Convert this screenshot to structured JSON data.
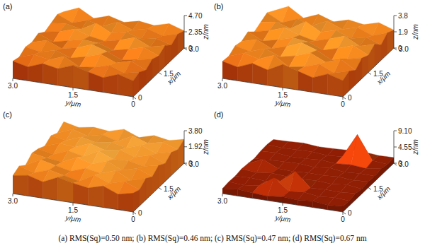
{
  "chart_data": [
    {
      "type": "surface",
      "title": "(a)",
      "x": [
        0,
        0.375,
        0.75,
        1.125,
        1.5,
        1.875,
        2.25,
        2.625,
        3
      ],
      "y": [
        0,
        0.375,
        0.75,
        1.125,
        1.5,
        1.875,
        2.25,
        2.625,
        3
      ],
      "z": [
        [
          2.3,
          2.9,
          2.1,
          2.6,
          3.2,
          2.4,
          2.8,
          2.0,
          2.5
        ],
        [
          2.7,
          2.2,
          3.0,
          2.4,
          2.1,
          3.3,
          2.5,
          2.9,
          2.2
        ],
        [
          2.1,
          3.1,
          2.5,
          3.4,
          2.7,
          2.2,
          3.0,
          2.4,
          2.8
        ],
        [
          2.8,
          2.4,
          2.0,
          2.9,
          3.6,
          2.8,
          2.3,
          3.2,
          2.6
        ],
        [
          2.4,
          3.3,
          2.7,
          2.2,
          2.9,
          3.1,
          2.6,
          2.1,
          3.0
        ],
        [
          3.0,
          2.5,
          3.5,
          2.8,
          2.3,
          2.7,
          3.4,
          2.7,
          2.3
        ],
        [
          2.2,
          2.8,
          2.4,
          3.1,
          2.6,
          3.7,
          2.5,
          3.0,
          2.7
        ],
        [
          2.9,
          2.3,
          3.0,
          2.5,
          3.3,
          2.4,
          2.9,
          2.2,
          3.1
        ],
        [
          2.5,
          3.2,
          2.6,
          2.9,
          2.4,
          3.0,
          2.3,
          3.5,
          2.6
        ]
      ],
      "xlim": [
        0,
        3
      ],
      "ylim": [
        0,
        3
      ],
      "zlim": [
        0,
        4.7
      ],
      "xticks": [
        0,
        1.5,
        {
          "value": 3,
          "label": "3.0"
        }
      ],
      "yticks": [
        0,
        1.5,
        {
          "value": 3,
          "label": "3.0"
        }
      ],
      "zticks": [
        0,
        2.35,
        {
          "value": 4.7,
          "label": "4.70"
        }
      ],
      "xlabel": "x/μm",
      "ylabel": "y/μm",
      "zlabel": "z/nm"
    },
    {
      "type": "surface",
      "title": "(b)",
      "x": [
        0,
        0.375,
        0.75,
        1.125,
        1.5,
        1.875,
        2.25,
        2.625,
        3
      ],
      "y": [
        0,
        0.375,
        0.75,
        1.125,
        1.5,
        1.875,
        2.25,
        2.625,
        3
      ],
      "z": [
        [
          1.9,
          2.4,
          1.7,
          2.2,
          2.7,
          1.8,
          2.3,
          1.6,
          2.0
        ],
        [
          2.3,
          1.8,
          2.6,
          2.0,
          1.7,
          2.8,
          2.1,
          2.5,
          1.9
        ],
        [
          1.7,
          2.7,
          2.1,
          2.9,
          2.3,
          1.9,
          2.6,
          2.0,
          2.4
        ],
        [
          2.4,
          2.0,
          1.6,
          2.5,
          3.1,
          2.4,
          1.9,
          2.7,
          2.2
        ],
        [
          2.0,
          2.9,
          2.3,
          1.8,
          2.5,
          2.7,
          2.2,
          1.8,
          2.6
        ],
        [
          2.6,
          2.1,
          3.0,
          2.4,
          1.9,
          2.3,
          2.9,
          2.3,
          1.9
        ],
        [
          1.8,
          2.4,
          2.0,
          2.7,
          2.2,
          3.2,
          2.1,
          2.6,
          2.3
        ],
        [
          2.5,
          1.9,
          2.6,
          2.1,
          2.8,
          2.0,
          2.5,
          1.8,
          2.7
        ],
        [
          2.1,
          2.7,
          2.2,
          2.5,
          2.0,
          2.6,
          1.9,
          3.0,
          2.2
        ]
      ],
      "xlim": [
        0,
        3
      ],
      "ylim": [
        0,
        3
      ],
      "zlim": [
        0,
        3.8
      ],
      "xticks": [
        0,
        1.5,
        {
          "value": 3,
          "label": "3.0"
        }
      ],
      "yticks": [
        0,
        1.5,
        {
          "value": 3,
          "label": "3.0"
        }
      ],
      "zticks": [
        0,
        1.9,
        3.8
      ],
      "xlabel": "x/μm",
      "ylabel": "y/μm",
      "zlabel": "z/nm"
    },
    {
      "type": "surface",
      "title": "(c)",
      "x": [
        0,
        0.375,
        0.75,
        1.125,
        1.5,
        1.875,
        2.25,
        2.625,
        3
      ],
      "y": [
        0,
        0.375,
        0.75,
        1.125,
        1.5,
        1.875,
        2.25,
        2.625,
        3
      ],
      "z": [
        [
          2.2,
          1.8,
          2.5,
          2.0,
          2.3,
          2.7,
          1.9,
          2.4,
          2.1
        ],
        [
          1.9,
          2.6,
          2.1,
          2.8,
          1.8,
          2.2,
          2.6,
          2.0,
          2.5
        ],
        [
          2.5,
          2.0,
          2.9,
          2.3,
          2.6,
          2.0,
          2.4,
          2.8,
          1.9
        ],
        [
          2.0,
          2.7,
          2.2,
          3.0,
          2.4,
          2.9,
          2.1,
          2.3,
          2.6
        ],
        [
          2.6,
          2.2,
          2.6,
          2.5,
          3.2,
          2.3,
          2.7,
          2.0,
          2.4
        ],
        [
          2.1,
          2.8,
          2.3,
          2.9,
          2.6,
          3.1,
          2.4,
          2.6,
          2.0
        ],
        [
          2.7,
          2.3,
          3.0,
          2.4,
          2.8,
          2.5,
          2.9,
          2.2,
          2.5
        ],
        [
          2.3,
          2.9,
          2.5,
          3.1,
          2.2,
          2.7,
          2.3,
          2.8,
          2.1
        ],
        [
          2.8,
          2.4,
          2.7,
          2.2,
          2.9,
          2.4,
          2.6,
          2.3,
          2.7
        ]
      ],
      "xlim": [
        0,
        3
      ],
      "ylim": [
        0,
        3
      ],
      "zlim": [
        0,
        3.8
      ],
      "xticks": [
        0,
        1.5,
        {
          "value": 3,
          "label": "3.0"
        }
      ],
      "yticks": [
        0,
        1.5,
        {
          "value": 3,
          "label": "3.0"
        }
      ],
      "zticks": [
        0,
        1.92,
        {
          "value": 3.8,
          "label": "3.80"
        }
      ],
      "xlabel": "x/μm",
      "ylabel": "y/μm",
      "zlabel": "z/nm"
    },
    {
      "type": "surface",
      "title": "(d)",
      "x": [
        0,
        0.375,
        0.75,
        1.125,
        1.5,
        1.875,
        2.25,
        2.625,
        3
      ],
      "y": [
        0,
        0.375,
        0.75,
        1.125,
        1.5,
        1.875,
        2.25,
        2.625,
        3
      ],
      "z": [
        [
          1.6,
          1.3,
          1.8,
          1.4,
          1.7,
          1.2,
          1.5,
          1.9,
          1.4
        ],
        [
          1.4,
          1.7,
          1.3,
          1.9,
          1.5,
          4.6,
          1.8,
          1.3,
          1.6
        ],
        [
          1.8,
          1.5,
          1.6,
          1.4,
          5.4,
          2.0,
          1.4,
          1.7,
          1.5
        ],
        [
          1.3,
          1.9,
          1.4,
          1.7,
          1.5,
          1.6,
          1.9,
          1.4,
          1.8
        ],
        [
          1.7,
          1.4,
          1.8,
          1.5,
          1.6,
          1.3,
          1.5,
          3.4,
          1.6
        ],
        [
          1.5,
          1.6,
          1.3,
          1.9,
          1.4,
          1.8,
          1.7,
          1.5,
          1.3
        ],
        [
          1.9,
          1.3,
          1.7,
          1.4,
          1.8,
          1.5,
          1.4,
          1.9,
          1.7
        ],
        [
          1.4,
          1.8,
          8.4,
          1.6,
          1.3,
          1.7,
          1.6,
          1.5,
          1.8
        ],
        [
          1.6,
          1.5,
          1.9,
          1.7,
          1.5,
          1.4,
          1.8,
          1.6,
          1.5
        ]
      ],
      "xlim": [
        0,
        3
      ],
      "ylim": [
        0,
        3
      ],
      "zlim": [
        0,
        9.1
      ],
      "xticks": [
        0,
        1.5,
        {
          "value": 3,
          "label": "3.0"
        }
      ],
      "yticks": [
        0,
        1.5,
        {
          "value": 3,
          "label": "3.0"
        }
      ],
      "zticks": [
        0,
        4.55,
        {
          "value": 9.1,
          "label": "9.10"
        }
      ],
      "xlabel": "x/μm",
      "ylabel": "y/μm",
      "zlabel": "z/nm"
    }
  ],
  "caption": "(a) RMS(Sq)=0.50 nm; (b) RMS(Sq)=0.46 nm; (c) RMS(Sq)=0.47 nm; (d) RMS(Sq)=0.67 nm"
}
